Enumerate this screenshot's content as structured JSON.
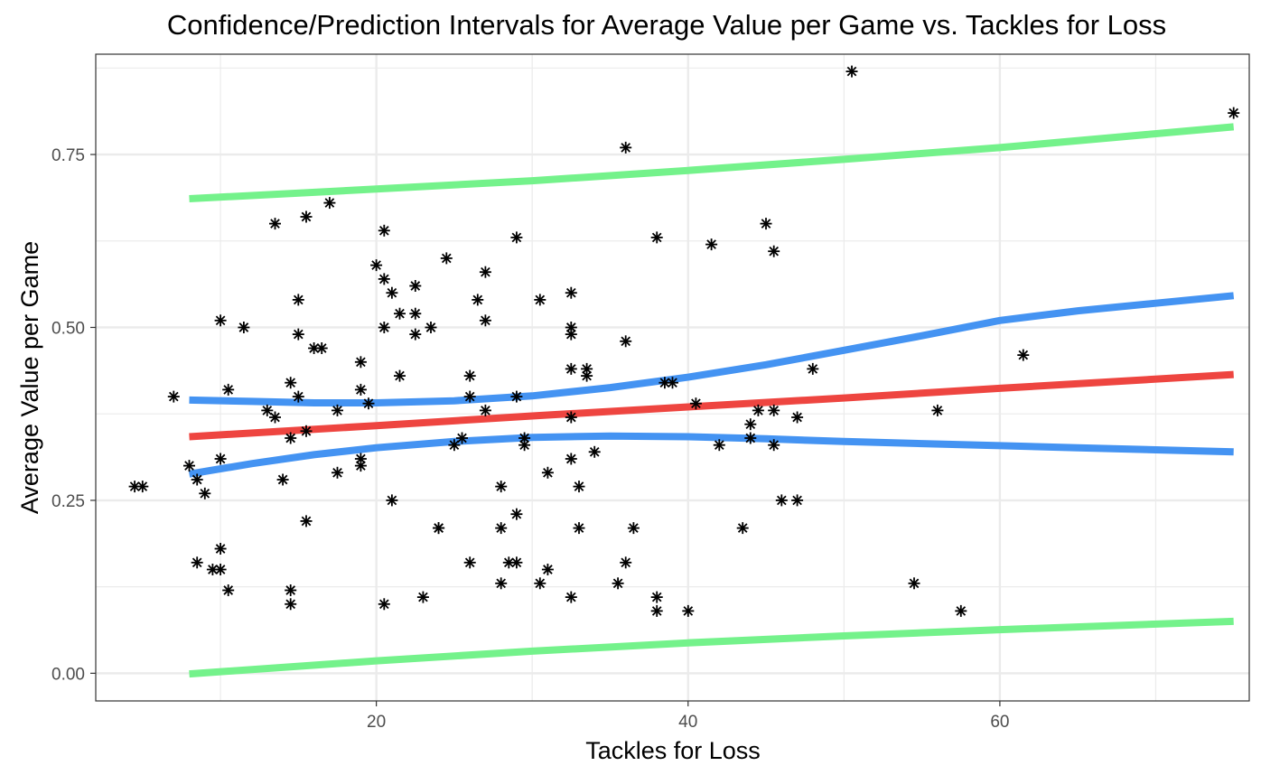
{
  "chart_data": {
    "type": "scatter",
    "title": "Confidence/Prediction Intervals for Average Value per Game vs. Tackles for Loss",
    "xlabel": "Tackles for Loss",
    "ylabel": "Average Value per Game",
    "xlim": [
      2,
      76
    ],
    "ylim": [
      -0.04,
      0.895
    ],
    "x_ticks": [
      20,
      40,
      60
    ],
    "x_tick_labels": [
      "20",
      "40",
      "60"
    ],
    "x_minor_ticks": [
      10,
      30,
      50,
      70
    ],
    "y_ticks": [
      0,
      0.25,
      0.5,
      0.75
    ],
    "y_tick_labels": [
      "0.00",
      "0.25",
      "0.50",
      "0.75"
    ],
    "y_minor_ticks": [
      0.125,
      0.375,
      0.625,
      0.875
    ],
    "grid": true,
    "legend": "none",
    "colors": {
      "points": "#000000",
      "fit": "#ee4540",
      "confidence": "#4493f2",
      "prediction": "#74f28b",
      "grid": "#ebebeb",
      "panel_border": "#333333"
    },
    "points": [
      {
        "x": 4.5,
        "y": 0.27
      },
      {
        "x": 5.0,
        "y": 0.27
      },
      {
        "x": 7.0,
        "y": 0.4
      },
      {
        "x": 8.0,
        "y": 0.3
      },
      {
        "x": 8.5,
        "y": 0.28
      },
      {
        "x": 8.5,
        "y": 0.16
      },
      {
        "x": 9.0,
        "y": 0.26
      },
      {
        "x": 9.5,
        "y": 0.15
      },
      {
        "x": 10.0,
        "y": 0.51
      },
      {
        "x": 10.0,
        "y": 0.31
      },
      {
        "x": 10.0,
        "y": 0.18
      },
      {
        "x": 10.0,
        "y": 0.15
      },
      {
        "x": 10.5,
        "y": 0.41
      },
      {
        "x": 10.5,
        "y": 0.12
      },
      {
        "x": 11.5,
        "y": 0.5
      },
      {
        "x": 13.0,
        "y": 0.38
      },
      {
        "x": 13.5,
        "y": 0.37
      },
      {
        "x": 13.5,
        "y": 0.65
      },
      {
        "x": 14.0,
        "y": 0.28
      },
      {
        "x": 14.5,
        "y": 0.42
      },
      {
        "x": 14.5,
        "y": 0.34
      },
      {
        "x": 14.5,
        "y": 0.12
      },
      {
        "x": 14.5,
        "y": 0.1
      },
      {
        "x": 15.0,
        "y": 0.54
      },
      {
        "x": 15.0,
        "y": 0.49
      },
      {
        "x": 15.0,
        "y": 0.4
      },
      {
        "x": 15.5,
        "y": 0.66
      },
      {
        "x": 15.5,
        "y": 0.35
      },
      {
        "x": 15.5,
        "y": 0.22
      },
      {
        "x": 16.0,
        "y": 0.47
      },
      {
        "x": 16.5,
        "y": 0.47
      },
      {
        "x": 17.0,
        "y": 0.68
      },
      {
        "x": 17.5,
        "y": 0.38
      },
      {
        "x": 17.5,
        "y": 0.29
      },
      {
        "x": 19.0,
        "y": 0.45
      },
      {
        "x": 19.0,
        "y": 0.41
      },
      {
        "x": 19.0,
        "y": 0.31
      },
      {
        "x": 19.0,
        "y": 0.3
      },
      {
        "x": 19.5,
        "y": 0.39
      },
      {
        "x": 20.0,
        "y": 0.59
      },
      {
        "x": 20.5,
        "y": 0.64
      },
      {
        "x": 20.5,
        "y": 0.57
      },
      {
        "x": 20.5,
        "y": 0.5
      },
      {
        "x": 20.5,
        "y": 0.1
      },
      {
        "x": 21.0,
        "y": 0.55
      },
      {
        "x": 21.0,
        "y": 0.25
      },
      {
        "x": 21.5,
        "y": 0.52
      },
      {
        "x": 21.5,
        "y": 0.43
      },
      {
        "x": 22.5,
        "y": 0.56
      },
      {
        "x": 22.5,
        "y": 0.52
      },
      {
        "x": 22.5,
        "y": 0.49
      },
      {
        "x": 23.0,
        "y": 0.11
      },
      {
        "x": 23.5,
        "y": 0.5
      },
      {
        "x": 24.0,
        "y": 0.21
      },
      {
        "x": 24.0,
        "y": 0.21
      },
      {
        "x": 24.5,
        "y": 0.6
      },
      {
        "x": 25.0,
        "y": 0.33
      },
      {
        "x": 25.5,
        "y": 0.34
      },
      {
        "x": 26.0,
        "y": 0.43
      },
      {
        "x": 26.0,
        "y": 0.4
      },
      {
        "x": 26.0,
        "y": 0.16
      },
      {
        "x": 26.5,
        "y": 0.54
      },
      {
        "x": 27.0,
        "y": 0.58
      },
      {
        "x": 27.0,
        "y": 0.51
      },
      {
        "x": 27.0,
        "y": 0.38
      },
      {
        "x": 28.0,
        "y": 0.27
      },
      {
        "x": 28.0,
        "y": 0.21
      },
      {
        "x": 28.0,
        "y": 0.13
      },
      {
        "x": 28.5,
        "y": 0.16
      },
      {
        "x": 29.0,
        "y": 0.63
      },
      {
        "x": 29.0,
        "y": 0.4
      },
      {
        "x": 29.0,
        "y": 0.23
      },
      {
        "x": 29.0,
        "y": 0.16
      },
      {
        "x": 29.5,
        "y": 0.34
      },
      {
        "x": 29.5,
        "y": 0.33
      },
      {
        "x": 30.5,
        "y": 0.54
      },
      {
        "x": 30.5,
        "y": 0.13
      },
      {
        "x": 31.0,
        "y": 0.29
      },
      {
        "x": 31.0,
        "y": 0.15
      },
      {
        "x": 32.5,
        "y": 0.55
      },
      {
        "x": 32.5,
        "y": 0.5
      },
      {
        "x": 32.5,
        "y": 0.49
      },
      {
        "x": 32.5,
        "y": 0.44
      },
      {
        "x": 32.5,
        "y": 0.37
      },
      {
        "x": 32.5,
        "y": 0.31
      },
      {
        "x": 32.5,
        "y": 0.11
      },
      {
        "x": 33.0,
        "y": 0.27
      },
      {
        "x": 33.0,
        "y": 0.21
      },
      {
        "x": 33.5,
        "y": 0.44
      },
      {
        "x": 33.5,
        "y": 0.43
      },
      {
        "x": 34.0,
        "y": 0.32
      },
      {
        "x": 35.5,
        "y": 0.13
      },
      {
        "x": 36.0,
        "y": 0.76
      },
      {
        "x": 36.0,
        "y": 0.48
      },
      {
        "x": 36.0,
        "y": 0.16
      },
      {
        "x": 36.5,
        "y": 0.21
      },
      {
        "x": 38.0,
        "y": 0.63
      },
      {
        "x": 38.0,
        "y": 0.11
      },
      {
        "x": 38.0,
        "y": 0.09
      },
      {
        "x": 38.5,
        "y": 0.42
      },
      {
        "x": 39.0,
        "y": 0.42
      },
      {
        "x": 40.0,
        "y": 0.09
      },
      {
        "x": 40.5,
        "y": 0.39
      },
      {
        "x": 41.5,
        "y": 0.62
      },
      {
        "x": 42.0,
        "y": 0.33
      },
      {
        "x": 43.5,
        "y": 0.21
      },
      {
        "x": 44.0,
        "y": 0.36
      },
      {
        "x": 44.0,
        "y": 0.34
      },
      {
        "x": 44.5,
        "y": 0.38
      },
      {
        "x": 45.0,
        "y": 0.65
      },
      {
        "x": 45.5,
        "y": 0.61
      },
      {
        "x": 45.5,
        "y": 0.38
      },
      {
        "x": 45.5,
        "y": 0.33
      },
      {
        "x": 46.0,
        "y": 0.25
      },
      {
        "x": 47.0,
        "y": 0.37
      },
      {
        "x": 47.0,
        "y": 0.25
      },
      {
        "x": 48.0,
        "y": 0.44
      },
      {
        "x": 50.5,
        "y": 0.87
      },
      {
        "x": 54.5,
        "y": 0.13
      },
      {
        "x": 56.0,
        "y": 0.38
      },
      {
        "x": 57.5,
        "y": 0.09
      },
      {
        "x": 61.5,
        "y": 0.46
      },
      {
        "x": 75.0,
        "y": 0.81
      }
    ],
    "series": [
      {
        "role": "fit",
        "color": "#ee4540",
        "x": [
          8,
          20,
          30,
          40,
          50,
          60,
          75
        ],
        "y": [
          0.342,
          0.358,
          0.372,
          0.385,
          0.398,
          0.412,
          0.432
        ]
      },
      {
        "role": "confidence-upper",
        "color": "#4493f2",
        "x": [
          8,
          12,
          16,
          20,
          25,
          30,
          35,
          40,
          45,
          50,
          55,
          60,
          65,
          70,
          75
        ],
        "y": [
          0.395,
          0.393,
          0.391,
          0.391,
          0.394,
          0.401,
          0.413,
          0.428,
          0.446,
          0.467,
          0.488,
          0.51,
          0.524,
          0.535,
          0.546
        ]
      },
      {
        "role": "confidence-lower",
        "color": "#4493f2",
        "x": [
          8,
          12,
          16,
          20,
          25,
          30,
          35,
          40,
          45,
          50,
          55,
          60,
          65,
          70,
          75
        ],
        "y": [
          0.288,
          0.303,
          0.316,
          0.326,
          0.335,
          0.341,
          0.343,
          0.342,
          0.339,
          0.335,
          0.332,
          0.329,
          0.326,
          0.323,
          0.32
        ]
      },
      {
        "role": "prediction-upper",
        "color": "#74f28b",
        "x": [
          8,
          20,
          30,
          40,
          50,
          60,
          75
        ],
        "y": [
          0.686,
          0.7,
          0.712,
          0.727,
          0.743,
          0.76,
          0.79
        ]
      },
      {
        "role": "prediction-lower",
        "color": "#74f28b",
        "x": [
          8,
          20,
          30,
          40,
          50,
          60,
          75
        ],
        "y": [
          -0.001,
          0.018,
          0.032,
          0.044,
          0.054,
          0.063,
          0.075
        ]
      }
    ]
  }
}
